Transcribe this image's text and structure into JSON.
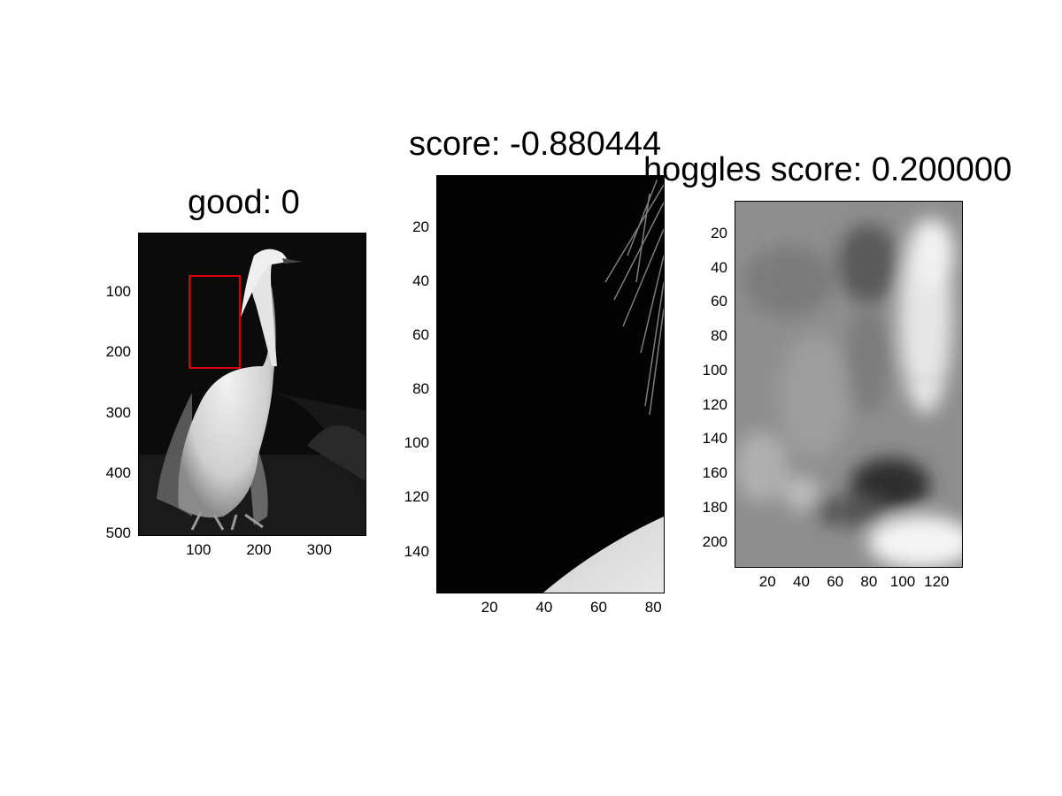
{
  "figure": {
    "panels": [
      {
        "title": "good: 0",
        "image_content": "egret",
        "x_ticks": [
          "100",
          "200",
          "300"
        ],
        "y_ticks": [
          "100",
          "200",
          "300",
          "400",
          "500"
        ],
        "x_range": [
          0,
          375
        ],
        "y_range": [
          0,
          500
        ],
        "box_color": "#e00000"
      },
      {
        "title": "score: -0.880444",
        "image_content": "crop",
        "x_ticks": [
          "20",
          "40",
          "60",
          "80"
        ],
        "y_ticks": [
          "20",
          "40",
          "60",
          "80",
          "100",
          "120",
          "140"
        ],
        "x_range": [
          0.5,
          83.5
        ],
        "y_range": [
          0.5,
          154.5
        ]
      },
      {
        "title": "hoggles score: 0.200000",
        "image_content": "hoggles",
        "x_ticks": [
          "20",
          "40",
          "60",
          "80",
          "100",
          "120"
        ],
        "y_ticks": [
          "20",
          "40",
          "60",
          "80",
          "100",
          "120",
          "140",
          "160",
          "180",
          "200"
        ],
        "x_range": [
          0.5,
          134.5
        ],
        "y_range": [
          0.5,
          213.5
        ]
      }
    ]
  }
}
